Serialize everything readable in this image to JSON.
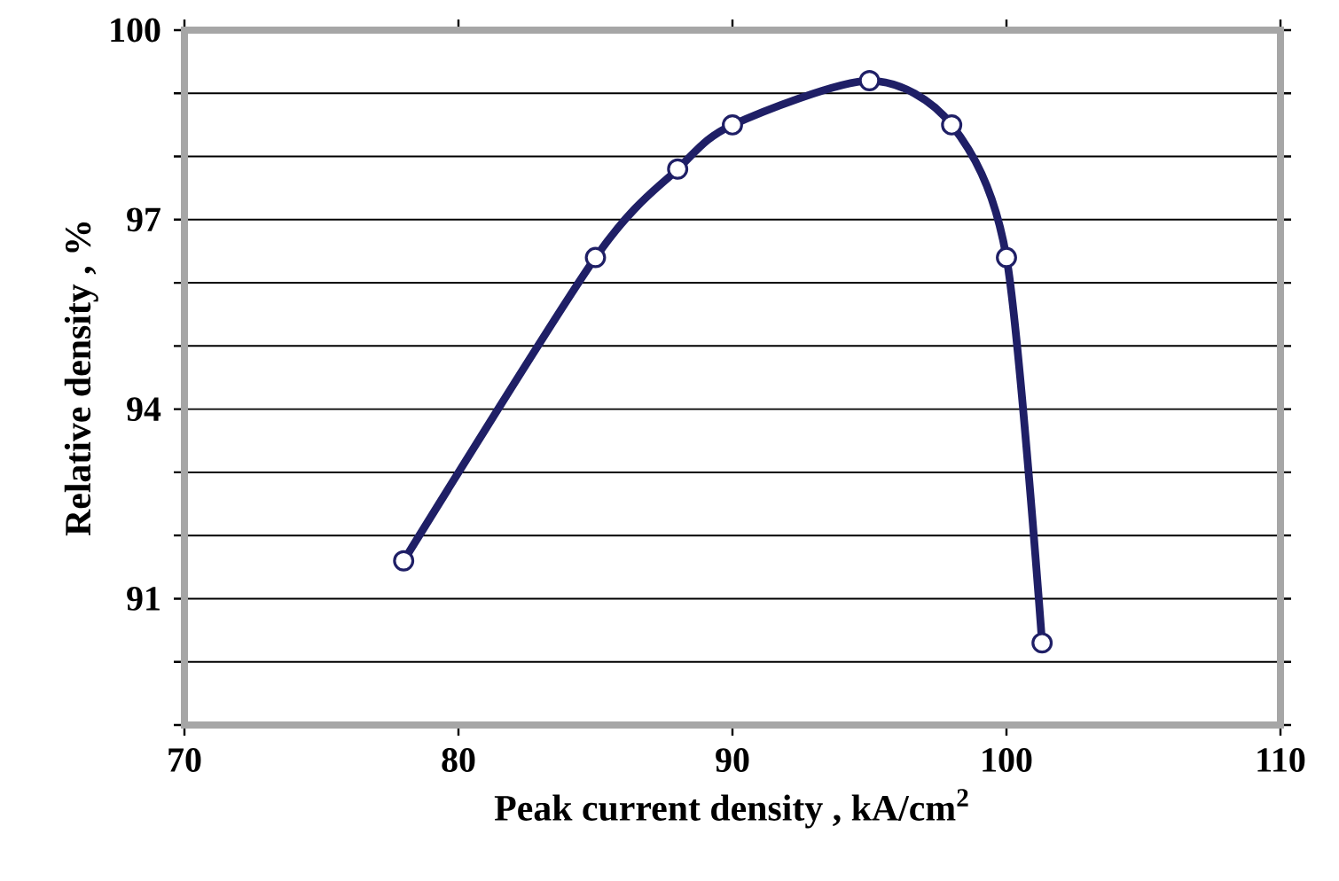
{
  "chart_data": {
    "type": "line",
    "xlabel": "Peak current density ,  kA/cm$^{2}$",
    "ylabel": "Relative density ,  %",
    "x": [
      78,
      85,
      88,
      90,
      95,
      98,
      100,
      101.3
    ],
    "series": [
      {
        "color": "#1f1f66",
        "values": [
          91.6,
          96.4,
          97.8,
          98.5,
          99.2,
          98.5,
          96.4,
          90.3
        ]
      }
    ],
    "xlim": [
      70,
      110
    ],
    "ylim": [
      89,
      100
    ],
    "xticks": [
      70,
      80,
      90,
      100,
      110
    ],
    "yticks": [
      {
        "value": 89,
        "label": null
      },
      {
        "value": 90,
        "label": null
      },
      91,
      {
        "value": 92,
        "label": null
      },
      {
        "value": 93,
        "label": null
      },
      94,
      {
        "value": 95,
        "label": null
      },
      {
        "value": 96,
        "label": null
      },
      97,
      {
        "value": 98,
        "label": null
      },
      {
        "value": 99,
        "label": null
      },
      100
    ],
    "grid": "y",
    "marker": "circle",
    "line_style": "solid"
  }
}
